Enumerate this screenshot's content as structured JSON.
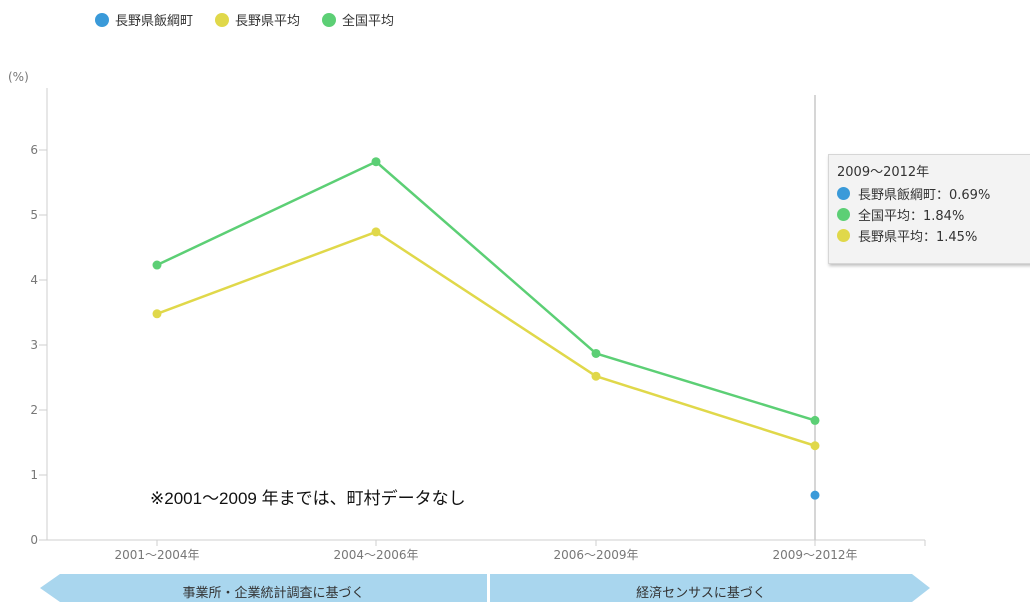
{
  "legend": [
    {
      "label": "長野県飯綱町",
      "color": "#3a9ad9"
    },
    {
      "label": "長野県平均",
      "color": "#e0d84a"
    },
    {
      "label": "全国平均",
      "color": "#5ccf75"
    }
  ],
  "note": "※2001～2009 年までは、町村データなし",
  "tooltip": {
    "title": "2009～2012年",
    "rows": [
      {
        "text": "長野県飯綱町：0.69%",
        "color": "#3a9ad9"
      },
      {
        "text": "全国平均：1.84%",
        "color": "#5ccf75"
      },
      {
        "text": "長野県平均：1.45%",
        "color": "#e0d84a"
      }
    ]
  },
  "banners": {
    "left": "事業所・企業統計調査に基づく",
    "right": "経済センサスに基づく",
    "color": "#a9d6ee"
  },
  "chart_data": {
    "type": "line",
    "ylabel": "(%)",
    "ylim": [
      0,
      7
    ],
    "yticks": [
      0,
      1,
      2,
      3,
      4,
      5,
      6
    ],
    "categories": [
      "2001～2004年",
      "2004～2006年",
      "2006～2009年",
      "2009～2012年"
    ],
    "series": [
      {
        "name": "長野県飯綱町",
        "color": "#3a9ad9",
        "values": [
          null,
          null,
          null,
          0.69
        ]
      },
      {
        "name": "長野県平均",
        "color": "#e0d84a",
        "values": [
          3.48,
          4.74,
          2.52,
          1.45
        ]
      },
      {
        "name": "全国平均",
        "color": "#5ccf75",
        "values": [
          4.23,
          5.82,
          2.87,
          1.84
        ]
      }
    ],
    "highlight_category": "2009～2012年",
    "grid": false,
    "legend_position": "top-left"
  }
}
